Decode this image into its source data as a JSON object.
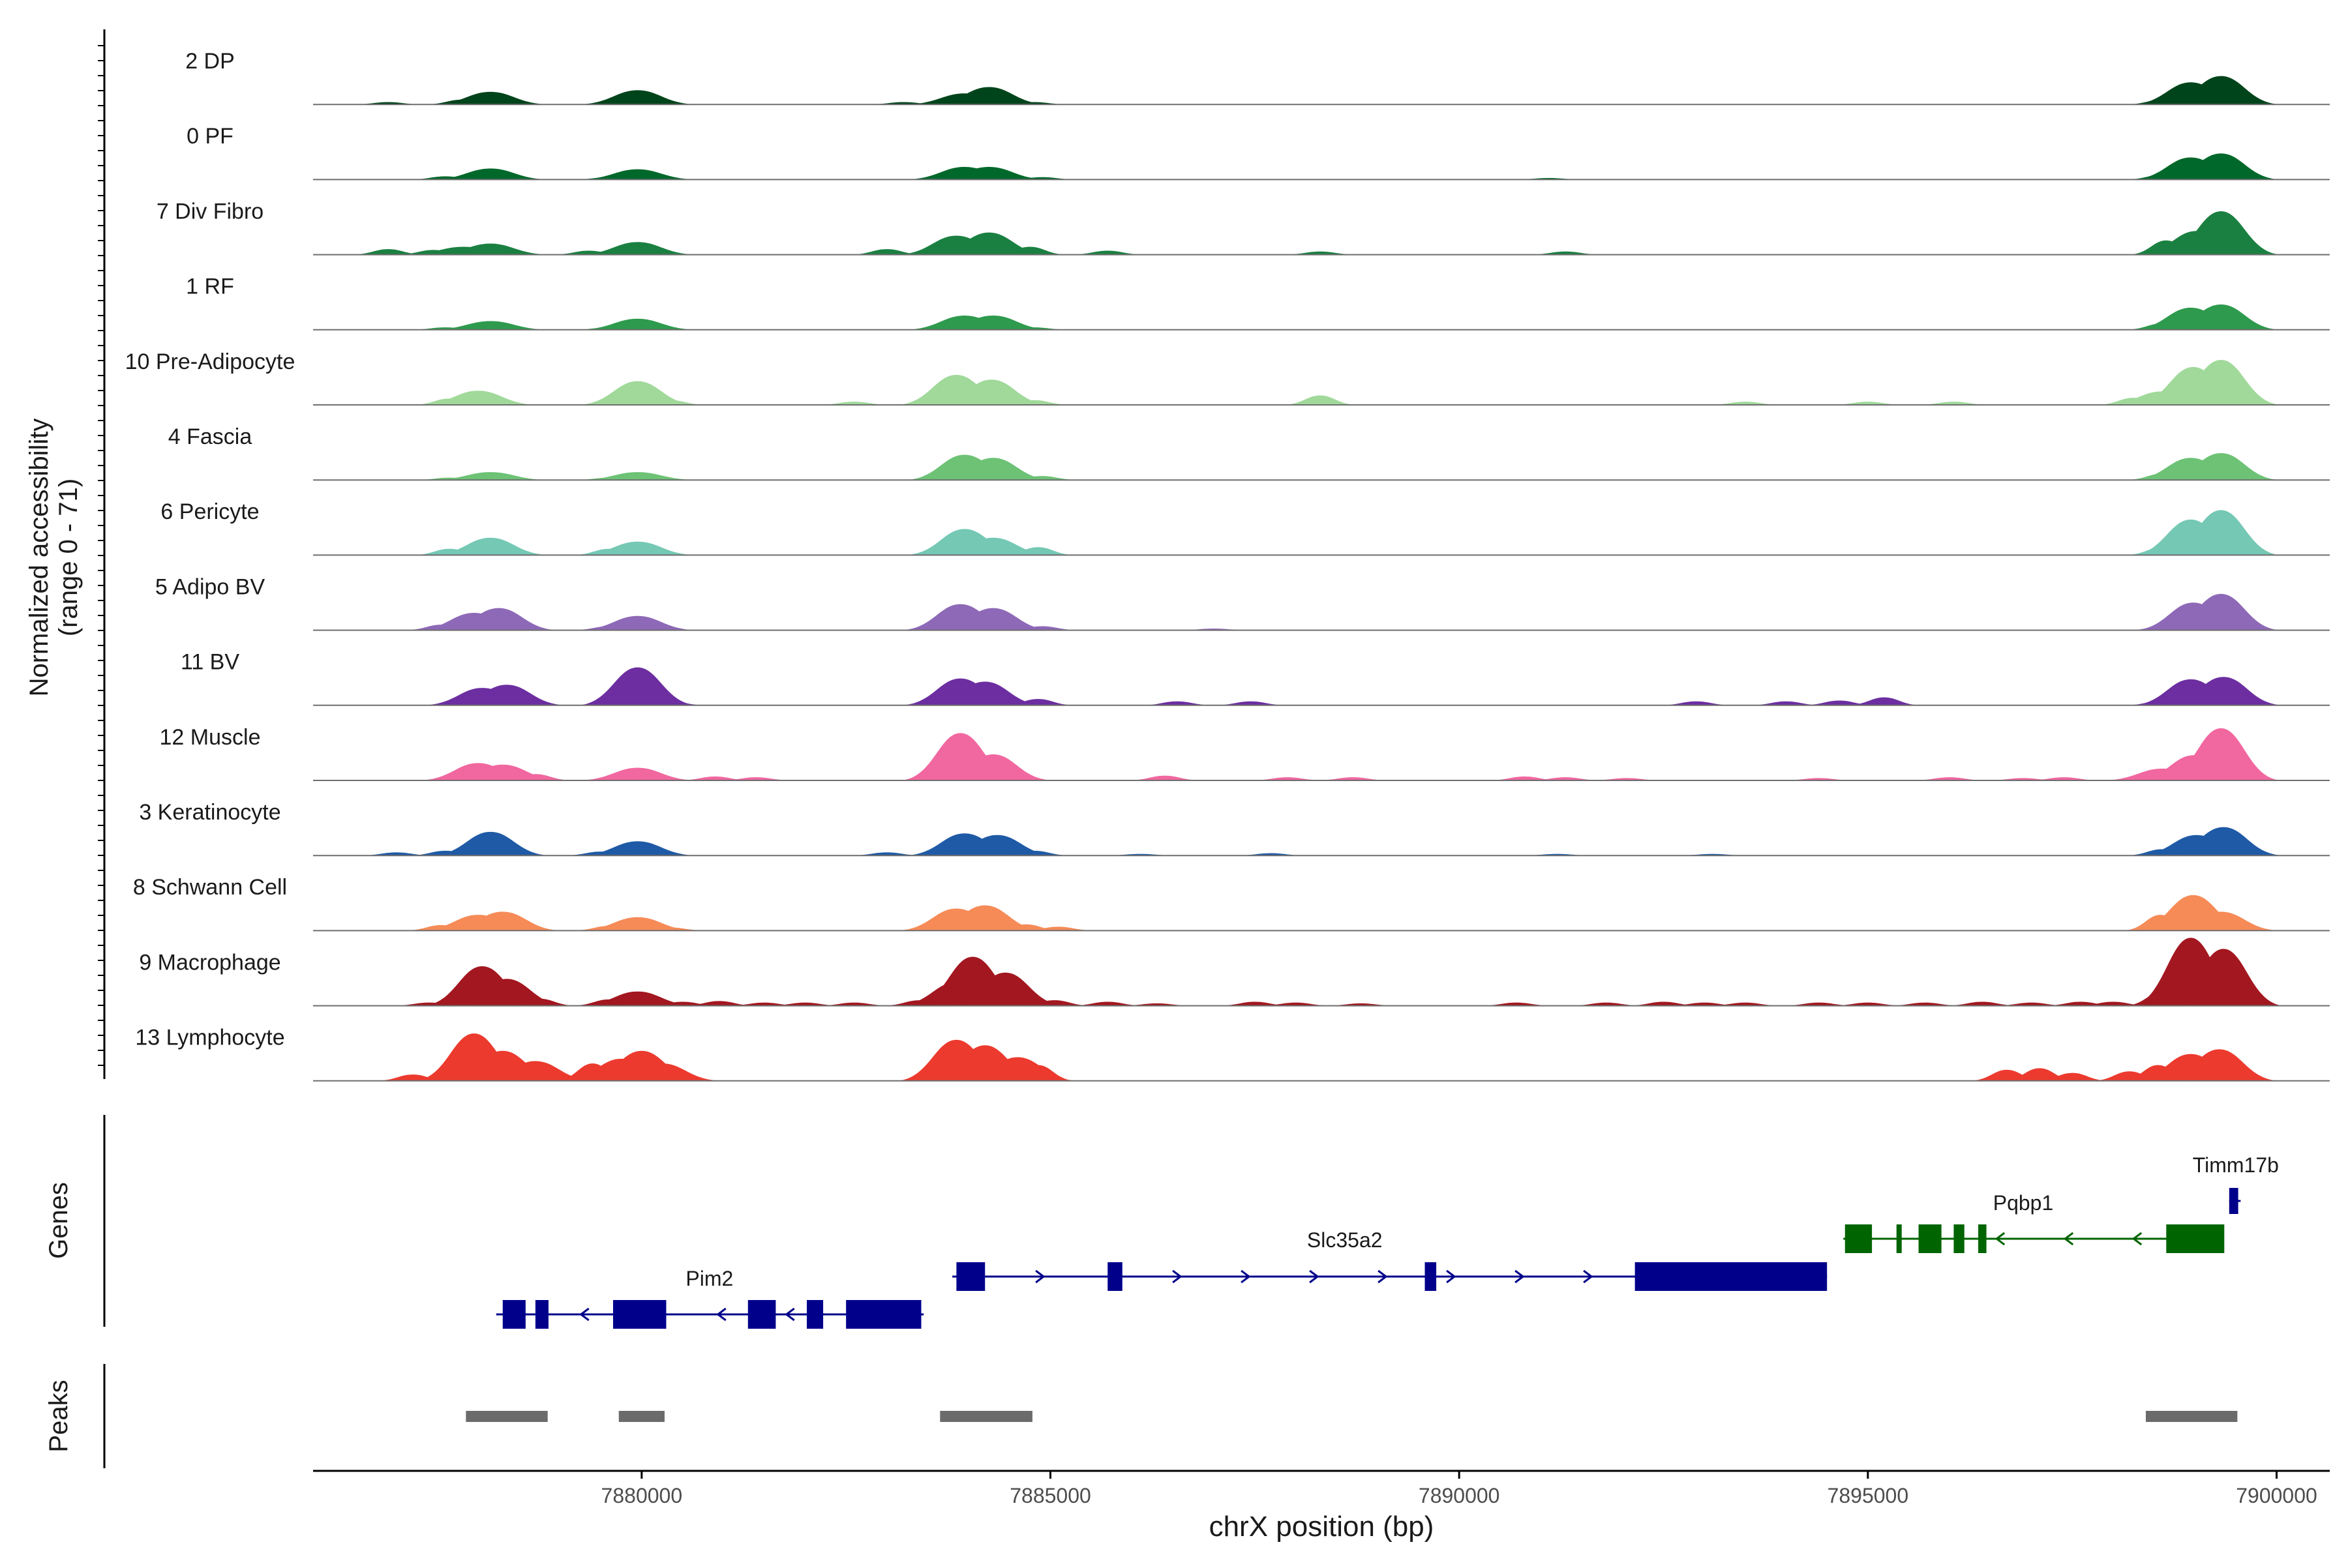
{
  "chart_data": {
    "type": "area",
    "title": "",
    "ylabel_line1": "Normalized accessibility",
    "ylabel_line2": "(range 0 - 71)",
    "y_range": [
      0,
      71
    ],
    "xlabel": "chrX position (bp)",
    "xlim": [
      7875980,
      7900650
    ],
    "x_ticks": [
      {
        "value": 7880000,
        "label": "7880000"
      },
      {
        "value": 7885000,
        "label": "7885000"
      },
      {
        "value": 7890000,
        "label": "7890000"
      },
      {
        "value": 7895000,
        "label": "7895000"
      },
      {
        "value": 7900000,
        "label": "7900000"
      }
    ],
    "tracks": [
      {
        "name": "2 DP",
        "color": "#00441b",
        "peaks": [
          [
            7878150,
            16
          ],
          [
            7879950,
            18
          ],
          [
            7883950,
            14
          ],
          [
            7884250,
            22
          ],
          [
            7898950,
            28
          ],
          [
            7899320,
            36
          ]
        ],
        "small": [
          [
            7876900,
            3
          ],
          [
            7877800,
            6
          ],
          [
            7879650,
            4
          ],
          [
            7883200,
            3
          ],
          [
            7884800,
            3
          ],
          [
            7898600,
            6
          ]
        ]
      },
      {
        "name": "0 PF",
        "color": "#00682a",
        "peaks": [
          [
            7878150,
            14
          ],
          [
            7879950,
            13
          ],
          [
            7883950,
            16
          ],
          [
            7884250,
            16
          ],
          [
            7898950,
            28
          ],
          [
            7899320,
            33
          ]
        ],
        "small": [
          [
            7877600,
            4
          ],
          [
            7879600,
            3
          ],
          [
            7884900,
            3
          ],
          [
            7891100,
            2
          ],
          [
            7898600,
            6
          ]
        ]
      },
      {
        "name": "7 Div Fibro",
        "color": "#1a8041",
        "peaks": [
          [
            7877820,
            10
          ],
          [
            7878150,
            14
          ],
          [
            7879950,
            16
          ],
          [
            7883850,
            24
          ],
          [
            7884250,
            28
          ],
          [
            7899020,
            30
          ],
          [
            7899320,
            55
          ]
        ],
        "small": [
          [
            7876900,
            7
          ],
          [
            7877450,
            6
          ],
          [
            7879350,
            5
          ],
          [
            7883000,
            7
          ],
          [
            7884750,
            10
          ],
          [
            7885700,
            5
          ],
          [
            7888300,
            4
          ],
          [
            7891300,
            4
          ],
          [
            7898650,
            18
          ]
        ]
      },
      {
        "name": "1 RF",
        "color": "#2e9a4d",
        "peaks": [
          [
            7878150,
            11
          ],
          [
            7879950,
            14
          ],
          [
            7883950,
            18
          ],
          [
            7884300,
            18
          ],
          [
            7898950,
            28
          ],
          [
            7899320,
            32
          ]
        ],
        "small": [
          [
            7877600,
            3
          ],
          [
            7879600,
            3
          ],
          [
            7884800,
            3
          ],
          [
            7898600,
            8
          ]
        ]
      },
      {
        "name": "10 Pre-Adipocyte",
        "color": "#a0d99a",
        "peaks": [
          [
            7878000,
            18
          ],
          [
            7879950,
            30
          ],
          [
            7883850,
            38
          ],
          [
            7884280,
            32
          ],
          [
            7898600,
            17
          ],
          [
            7898980,
            48
          ],
          [
            7899320,
            57
          ]
        ],
        "small": [
          [
            7877650,
            8
          ],
          [
            7879650,
            6
          ],
          [
            7880350,
            6
          ],
          [
            7882600,
            4
          ],
          [
            7884800,
            6
          ],
          [
            7888300,
            12
          ],
          [
            7893500,
            4
          ],
          [
            7895000,
            4
          ],
          [
            7896050,
            4
          ],
          [
            7898250,
            9
          ]
        ]
      },
      {
        "name": "4 Fascia",
        "color": "#6dc275",
        "peaks": [
          [
            7878150,
            10
          ],
          [
            7879950,
            10
          ],
          [
            7883950,
            32
          ],
          [
            7884300,
            28
          ],
          [
            7898950,
            28
          ],
          [
            7899320,
            34
          ]
        ],
        "small": [
          [
            7877650,
            3
          ],
          [
            7879600,
            3
          ],
          [
            7884900,
            5
          ],
          [
            7898600,
            8
          ]
        ]
      },
      {
        "name": "6 Pericyte",
        "color": "#74c8b4",
        "peaks": [
          [
            7878150,
            22
          ],
          [
            7879950,
            17
          ],
          [
            7883950,
            33
          ],
          [
            7884300,
            22
          ],
          [
            7898950,
            45
          ],
          [
            7899320,
            57
          ]
        ],
        "small": [
          [
            7877650,
            8
          ],
          [
            7879600,
            8
          ],
          [
            7884850,
            10
          ],
          [
            7898600,
            10
          ]
        ]
      },
      {
        "name": "5 Adipo BV",
        "color": "#8e69b7",
        "peaks": [
          [
            7877950,
            22
          ],
          [
            7878250,
            28
          ],
          [
            7879950,
            18
          ],
          [
            7883900,
            33
          ],
          [
            7884300,
            28
          ],
          [
            7898980,
            35
          ],
          [
            7899320,
            46
          ]
        ],
        "small": [
          [
            7877550,
            7
          ],
          [
            7879600,
            5
          ],
          [
            7884900,
            5
          ],
          [
            7887000,
            2
          ],
          [
            7898650,
            7
          ]
        ]
      },
      {
        "name": "11 BV",
        "color": "#6c2ea0",
        "peaks": [
          [
            7878050,
            22
          ],
          [
            7878350,
            26
          ],
          [
            7879950,
            48
          ],
          [
            7883900,
            34
          ],
          [
            7884200,
            30
          ],
          [
            7898950,
            33
          ],
          [
            7899350,
            36
          ]
        ],
        "small": [
          [
            7878650,
            7
          ],
          [
            7879650,
            8
          ],
          [
            7880350,
            5
          ],
          [
            7884850,
            8
          ],
          [
            7886550,
            5
          ],
          [
            7887450,
            5
          ],
          [
            7892900,
            5
          ],
          [
            7894000,
            5
          ],
          [
            7894650,
            6
          ],
          [
            7895200,
            10
          ],
          [
            7898600,
            6
          ]
        ]
      },
      {
        "name": "12 Muscle",
        "color": "#f1679f",
        "peaks": [
          [
            7878000,
            22
          ],
          [
            7878300,
            20
          ],
          [
            7879950,
            16
          ],
          [
            7883900,
            60
          ],
          [
            7884300,
            33
          ],
          [
            7898600,
            15
          ],
          [
            7898990,
            32
          ],
          [
            7899320,
            66
          ]
        ],
        "small": [
          [
            7878700,
            8
          ],
          [
            7880000,
            4
          ],
          [
            7880900,
            5
          ],
          [
            7881400,
            4
          ],
          [
            7886400,
            6
          ],
          [
            7887900,
            4
          ],
          [
            7888700,
            4
          ],
          [
            7890800,
            5
          ],
          [
            7891300,
            4
          ],
          [
            7892050,
            3
          ],
          [
            7894400,
            3
          ],
          [
            7896000,
            4
          ],
          [
            7896900,
            3
          ],
          [
            7897400,
            4
          ]
        ]
      },
      {
        "name": "3 Keratinocyte",
        "color": "#1f5aa6",
        "peaks": [
          [
            7878150,
            30
          ],
          [
            7879950,
            18
          ],
          [
            7883950,
            28
          ],
          [
            7884350,
            26
          ],
          [
            7899020,
            26
          ],
          [
            7899350,
            36
          ]
        ],
        "small": [
          [
            7877000,
            4
          ],
          [
            7877600,
            6
          ],
          [
            7879500,
            5
          ],
          [
            7883000,
            4
          ],
          [
            7884800,
            6
          ],
          [
            7886100,
            2
          ],
          [
            7887700,
            3
          ],
          [
            7891200,
            2
          ],
          [
            7893100,
            2
          ],
          [
            7898600,
            8
          ]
        ]
      },
      {
        "name": "8 Schwann Cell",
        "color": "#f68b58",
        "peaks": [
          [
            7878000,
            20
          ],
          [
            7878300,
            24
          ],
          [
            7879950,
            17
          ],
          [
            7883850,
            28
          ],
          [
            7884200,
            32
          ],
          [
            7898980,
            45
          ],
          [
            7899320,
            24
          ]
        ],
        "small": [
          [
            7877550,
            7
          ],
          [
            7879600,
            6
          ],
          [
            7880350,
            4
          ],
          [
            7884700,
            8
          ],
          [
            7885100,
            5
          ],
          [
            7898580,
            20
          ]
        ]
      },
      {
        "name": "9 Macrophage",
        "color": "#a31720",
        "peaks": [
          [
            7878050,
            50
          ],
          [
            7878350,
            34
          ],
          [
            7879950,
            18
          ],
          [
            7883850,
            30
          ],
          [
            7884050,
            62
          ],
          [
            7884450,
            42
          ],
          [
            7898950,
            86
          ],
          [
            7899350,
            72
          ]
        ],
        "small": [
          [
            7877400,
            4
          ],
          [
            7878750,
            9
          ],
          [
            7879600,
            8
          ],
          [
            7880500,
            5
          ],
          [
            7880950,
            6
          ],
          [
            7881500,
            4
          ],
          [
            7882000,
            4
          ],
          [
            7882600,
            4
          ],
          [
            7883400,
            7
          ],
          [
            7885050,
            7
          ],
          [
            7885700,
            5
          ],
          [
            7886300,
            3
          ],
          [
            7887500,
            5
          ],
          [
            7888000,
            4
          ],
          [
            7888800,
            3
          ],
          [
            7890700,
            4
          ],
          [
            7891800,
            4
          ],
          [
            7892500,
            5
          ],
          [
            7893000,
            4
          ],
          [
            7893500,
            4
          ],
          [
            7894400,
            4
          ],
          [
            7895000,
            4
          ],
          [
            7895700,
            4
          ],
          [
            7896400,
            5
          ],
          [
            7897000,
            4
          ],
          [
            7897600,
            5
          ],
          [
            7898000,
            5
          ],
          [
            7898600,
            18
          ]
        ]
      },
      {
        "name": "13 Lymphocyte",
        "color": "#ec3a2e",
        "peaks": [
          [
            7877950,
            60
          ],
          [
            7878300,
            38
          ],
          [
            7878700,
            25
          ],
          [
            7879750,
            28
          ],
          [
            7880000,
            38
          ],
          [
            7880250,
            22
          ],
          [
            7883850,
            52
          ],
          [
            7884200,
            45
          ],
          [
            7884600,
            30
          ],
          [
            7898950,
            34
          ],
          [
            7899300,
            40
          ]
        ],
        "small": [
          [
            7877200,
            8
          ],
          [
            7879400,
            22
          ],
          [
            7884850,
            20
          ],
          [
            7896700,
            14
          ],
          [
            7897100,
            16
          ],
          [
            7897500,
            10
          ],
          [
            7898200,
            12
          ],
          [
            7898550,
            20
          ]
        ]
      }
    ],
    "genes": [
      {
        "name": "Pim2",
        "strand": "-",
        "color": "#00008b",
        "start": 7878220,
        "end": 7883450,
        "exons": [
          [
            7878300,
            7878580
          ],
          [
            7878700,
            7878860
          ],
          [
            7879650,
            7880300
          ],
          [
            7881300,
            7881640
          ],
          [
            7882020,
            7882220
          ],
          [
            7882500,
            7883420
          ]
        ]
      },
      {
        "name": "Slc35a2",
        "strand": "+",
        "color": "#00008b",
        "start": 7883800,
        "end": 7894500,
        "exons": [
          [
            7883850,
            7884200
          ],
          [
            7885700,
            7885880
          ],
          [
            7889580,
            7889720
          ],
          [
            7892150,
            7894500
          ]
        ]
      },
      {
        "name": "Pqbp1",
        "strand": "-",
        "color": "#006400",
        "start": 7894700,
        "end": 7899300,
        "exons": [
          [
            7894720,
            7895050
          ],
          [
            7895350,
            7895400
          ],
          [
            7895620,
            7895900
          ],
          [
            7896050,
            7896180
          ],
          [
            7896350,
            7896450
          ],
          [
            7898650,
            7899360
          ]
        ]
      },
      {
        "name": "Timm17b",
        "strand": "+",
        "color": "#00008b",
        "start": 7899420,
        "end": 7899560,
        "exons": [
          [
            7899420,
            7899530
          ]
        ]
      }
    ],
    "peak_regions": [
      [
        7877850,
        7878850
      ],
      [
        7879720,
        7880280
      ],
      [
        7883650,
        7884780
      ],
      [
        7898400,
        7899520
      ]
    ],
    "panel_labels": {
      "genes": "Genes",
      "peaks": "Peaks"
    }
  }
}
